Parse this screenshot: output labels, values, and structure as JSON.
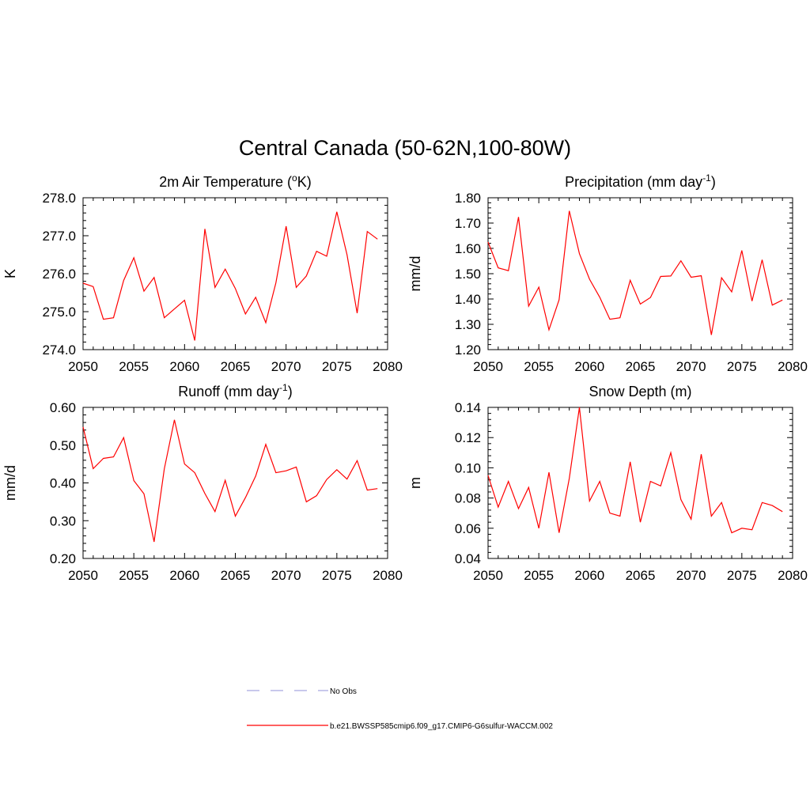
{
  "main_title": "Central Canada (50-62N,100-80W)",
  "legend": {
    "entries": [
      {
        "label": "No Obs",
        "color": "#a6a6e0",
        "style": "dashed"
      },
      {
        "label": "b.e21.BWSSP585cmip6.f09_g17.CMIP6-G6sulfur-WACCM.002",
        "color": "#ff0000",
        "style": "solid"
      }
    ]
  },
  "chart_data": [
    {
      "type": "line",
      "title": "2m Air Temperature (",
      "title_sup": "o",
      "title_suffix": "K)",
      "xlabel": "",
      "ylabel": "K",
      "xlim": [
        2050,
        2080
      ],
      "ylim": [
        274.0,
        278.0
      ],
      "xticks": [
        2050,
        2055,
        2060,
        2065,
        2070,
        2075,
        2080
      ],
      "yticks": [
        274.0,
        275.0,
        276.0,
        277.0,
        278.0
      ],
      "ytick_labels": [
        "274.0",
        "275.0",
        "276.0",
        "277.0",
        "278.0"
      ],
      "series": [
        {
          "color": "#ff0000",
          "x": [
            2050,
            2051,
            2052,
            2053,
            2054,
            2055,
            2056,
            2057,
            2058,
            2059,
            2060,
            2061,
            2062,
            2063,
            2064,
            2065,
            2066,
            2067,
            2068,
            2069,
            2070,
            2071,
            2072,
            2073,
            2074,
            2075,
            2076,
            2077,
            2078,
            2079
          ],
          "values": [
            275.75,
            275.66,
            274.8,
            274.84,
            275.82,
            276.42,
            275.54,
            275.9,
            274.84,
            275.07,
            275.3,
            274.24,
            277.18,
            275.64,
            276.12,
            275.61,
            274.94,
            275.38,
            274.71,
            275.76,
            277.25,
            275.64,
            275.94,
            276.59,
            276.46,
            277.63,
            276.5,
            274.96,
            277.11,
            276.91
          ]
        }
      ]
    },
    {
      "type": "line",
      "title": "Precipitation (mm day",
      "title_sup": "-1",
      "title_suffix": ")",
      "xlabel": "",
      "ylabel": "mm/d",
      "xlim": [
        2050,
        2080
      ],
      "ylim": [
        1.2,
        1.8
      ],
      "xticks": [
        2050,
        2055,
        2060,
        2065,
        2070,
        2075,
        2080
      ],
      "yticks": [
        1.2,
        1.3,
        1.4,
        1.5,
        1.6,
        1.7,
        1.8
      ],
      "ytick_labels": [
        "1.20",
        "1.30",
        "1.40",
        "1.50",
        "1.60",
        "1.70",
        "1.80"
      ],
      "series": [
        {
          "color": "#ff0000",
          "x": [
            2050,
            2051,
            2052,
            2053,
            2054,
            2055,
            2056,
            2057,
            2058,
            2059,
            2060,
            2061,
            2062,
            2063,
            2064,
            2065,
            2066,
            2067,
            2068,
            2069,
            2070,
            2071,
            2072,
            2073,
            2074,
            2075,
            2076,
            2077,
            2078,
            2079
          ],
          "values": [
            1.625,
            1.523,
            1.512,
            1.724,
            1.372,
            1.447,
            1.278,
            1.397,
            1.748,
            1.579,
            1.478,
            1.407,
            1.32,
            1.326,
            1.474,
            1.38,
            1.406,
            1.489,
            1.491,
            1.551,
            1.486,
            1.492,
            1.258,
            1.484,
            1.428,
            1.592,
            1.392,
            1.555,
            1.376,
            1.396
          ]
        }
      ]
    },
    {
      "type": "line",
      "title": "Runoff (mm day",
      "title_sup": "-1",
      "title_suffix": ")",
      "xlabel": "",
      "ylabel": "mm/d",
      "xlim": [
        2050,
        2080
      ],
      "ylim": [
        0.2,
        0.6
      ],
      "xticks": [
        2050,
        2055,
        2060,
        2065,
        2070,
        2075,
        2080
      ],
      "yticks": [
        0.2,
        0.3,
        0.4,
        0.5,
        0.6
      ],
      "ytick_labels": [
        "0.20",
        "0.30",
        "0.40",
        "0.50",
        "0.60"
      ],
      "series": [
        {
          "color": "#ff0000",
          "x": [
            2050,
            2051,
            2052,
            2053,
            2054,
            2055,
            2056,
            2057,
            2058,
            2059,
            2060,
            2061,
            2062,
            2063,
            2064,
            2065,
            2066,
            2067,
            2068,
            2069,
            2070,
            2071,
            2072,
            2073,
            2074,
            2075,
            2076,
            2077,
            2078,
            2079
          ],
          "values": [
            0.548,
            0.438,
            0.465,
            0.469,
            0.52,
            0.406,
            0.371,
            0.244,
            0.437,
            0.567,
            0.45,
            0.427,
            0.372,
            0.324,
            0.407,
            0.312,
            0.361,
            0.418,
            0.502,
            0.427,
            0.432,
            0.442,
            0.35,
            0.366,
            0.409,
            0.435,
            0.41,
            0.459,
            0.381,
            0.385
          ]
        }
      ]
    },
    {
      "type": "line",
      "title": "Snow Depth (m)",
      "title_sup": "",
      "title_suffix": "",
      "xlabel": "",
      "ylabel": "m",
      "xlim": [
        2050,
        2080
      ],
      "ylim": [
        0.04,
        0.14
      ],
      "xticks": [
        2050,
        2055,
        2060,
        2065,
        2070,
        2075,
        2080
      ],
      "yticks": [
        0.04,
        0.06,
        0.08,
        0.1,
        0.12,
        0.14
      ],
      "ytick_labels": [
        "0.04",
        "0.06",
        "0.08",
        "0.10",
        "0.12",
        "0.14"
      ],
      "series": [
        {
          "color": "#ff0000",
          "x": [
            2050,
            2051,
            2052,
            2053,
            2054,
            2055,
            2056,
            2057,
            2058,
            2059,
            2060,
            2061,
            2062,
            2063,
            2064,
            2065,
            2066,
            2067,
            2068,
            2069,
            2070,
            2071,
            2072,
            2073,
            2074,
            2075,
            2076,
            2077,
            2078,
            2079
          ],
          "values": [
            0.095,
            0.074,
            0.091,
            0.073,
            0.087,
            0.06,
            0.097,
            0.057,
            0.093,
            0.14,
            0.078,
            0.091,
            0.07,
            0.068,
            0.104,
            0.064,
            0.091,
            0.088,
            0.11,
            0.079,
            0.066,
            0.109,
            0.068,
            0.077,
            0.057,
            0.06,
            0.059,
            0.077,
            0.075,
            0.071
          ]
        }
      ]
    }
  ]
}
